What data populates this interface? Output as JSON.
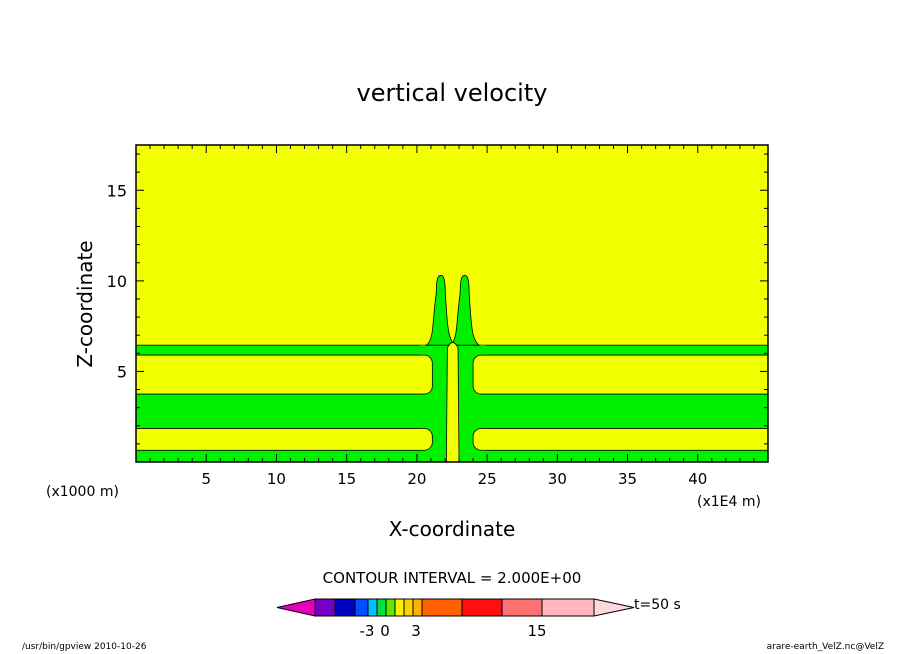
{
  "footer": {
    "left": "/usr/bin/gpview   2010-10-26",
    "right": "arare-earth_VelZ.nc@VelZ"
  },
  "chart_data": {
    "type": "heatmap",
    "title": "vertical velocity",
    "xlabel": "X-coordinate",
    "ylabel": "Z-coordinate",
    "x_unit": "(x1000 m)",
    "x_scale_note": "(x1E4 m)",
    "xlim": [
      0,
      45
    ],
    "ylim": [
      0,
      17.5
    ],
    "x_ticks": [
      5,
      10,
      15,
      20,
      25,
      30,
      35,
      40
    ],
    "y_ticks": [
      5,
      10,
      15
    ],
    "colors": {
      "background_level": "#f2ff00",
      "band_level": "#00f000"
    },
    "bands": [
      {
        "zmin": 0.0,
        "zmax": 0.65
      },
      {
        "zmin": 1.85,
        "zmax": 3.75
      },
      {
        "zmin": 5.9,
        "zmax": 6.45
      }
    ],
    "plumes": [
      {
        "x_center": 21.7,
        "top": 10.3
      },
      {
        "x_center": 23.4,
        "top": 10.3
      }
    ],
    "center_gap": {
      "xmin": 22.1,
      "xmax": 23.0
    },
    "contour_interval_label": "CONTOUR INTERVAL = 2.000E+00",
    "colorbar": {
      "colors": [
        "#e800b8",
        "#7400c8",
        "#0000c0",
        "#0050ff",
        "#00c0ff",
        "#00e040",
        "#60e800",
        "#fff000",
        "#ffd000",
        "#ffb000",
        "#ff6000",
        "#ff1010",
        "#ff7070",
        "#ffb8c0",
        "#ffd8dc"
      ],
      "tick_labels": [
        "-3",
        "0",
        "3",
        "15"
      ],
      "time_label": "t=50 s"
    }
  }
}
